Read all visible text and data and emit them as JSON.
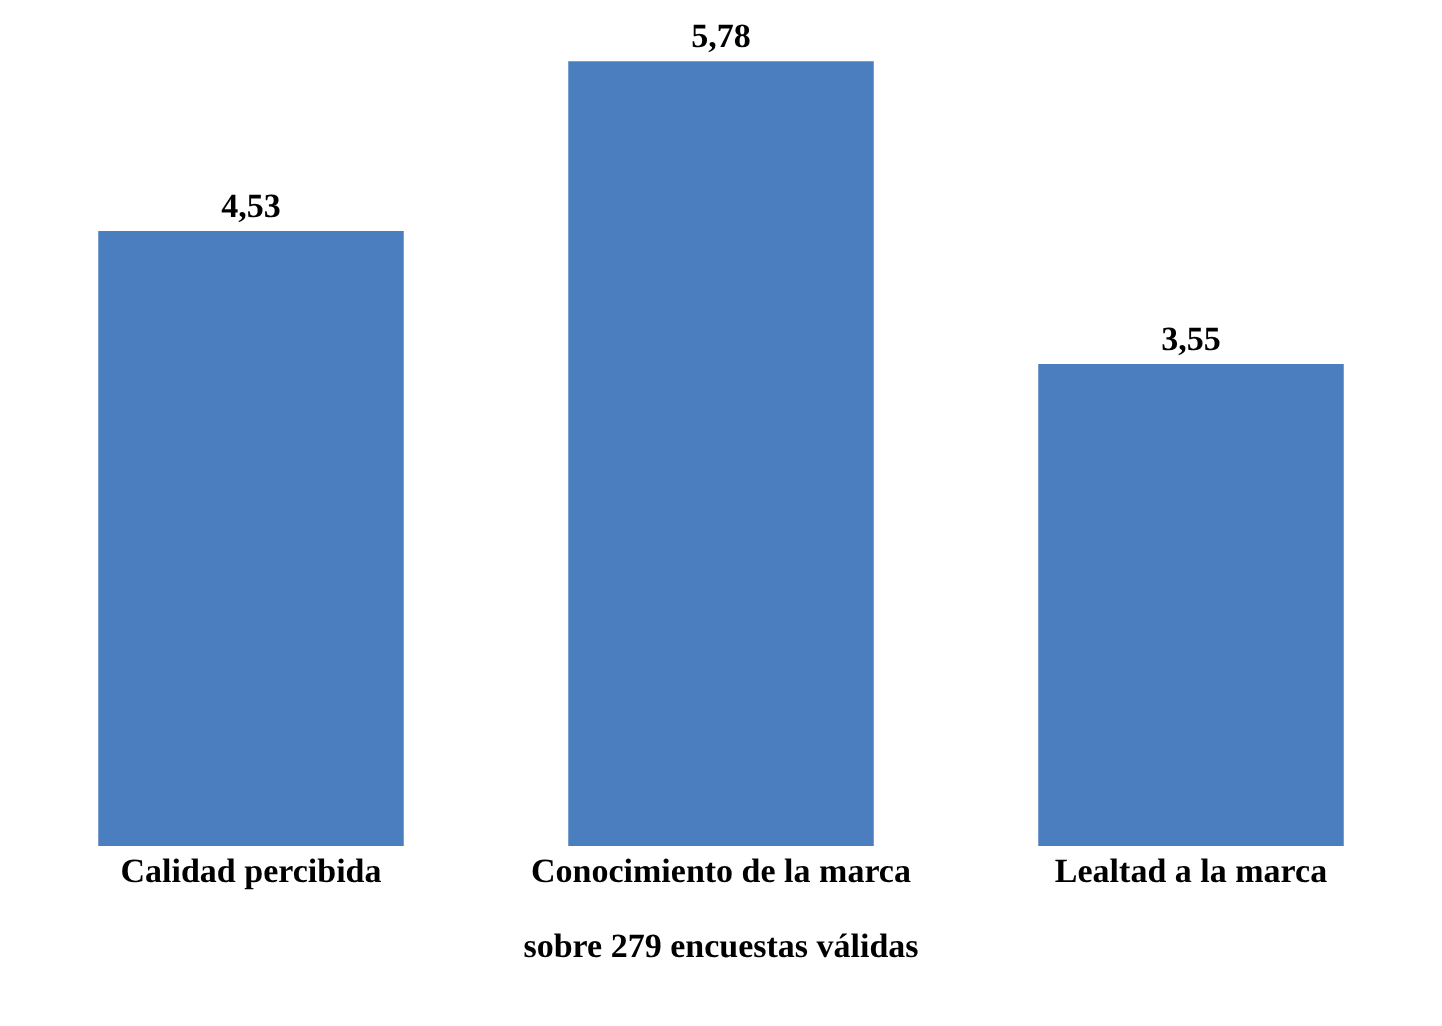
{
  "chart_data": {
    "type": "bar",
    "categories": [
      "Calidad percibida",
      "Conocimiento de la marca",
      "Lealtad a la marca"
    ],
    "values": [
      4.53,
      5.78,
      3.55
    ],
    "value_labels": [
      "4,53",
      "5,78",
      "3,55"
    ],
    "color": "#4a7ebf",
    "xlabel": "sobre 279 encuestas válidas"
  }
}
